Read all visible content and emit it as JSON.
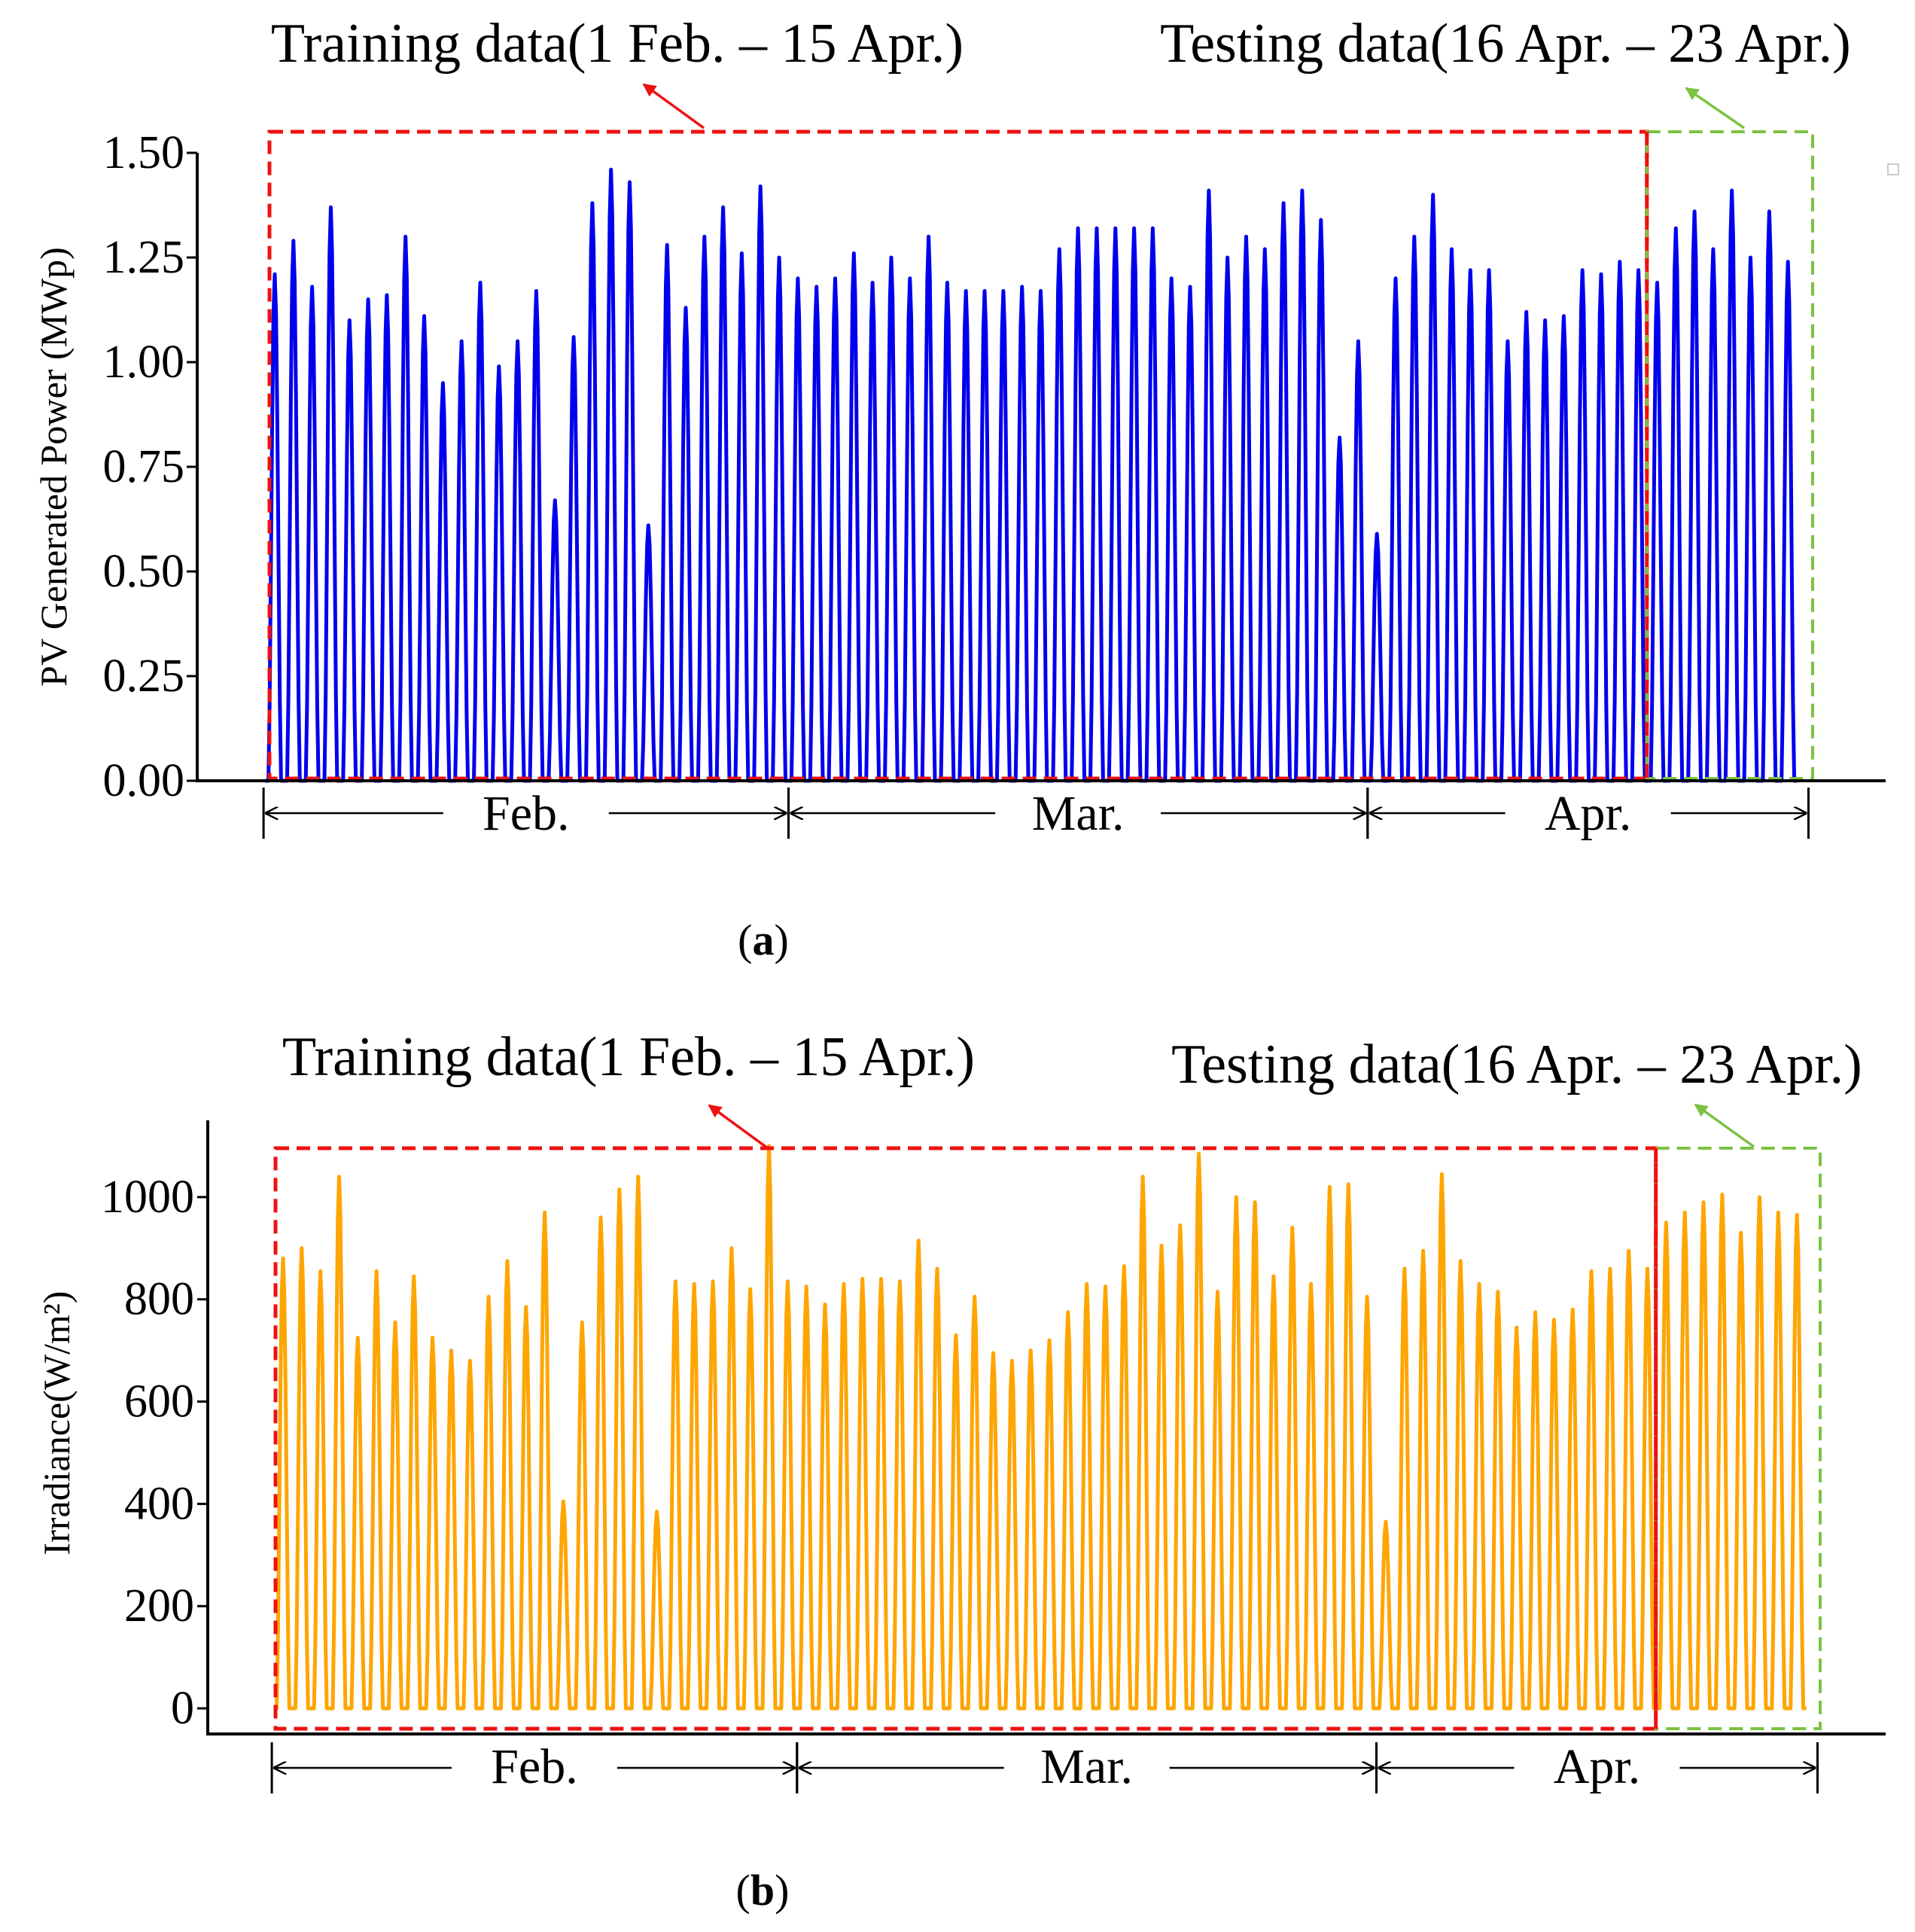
{
  "colors": {
    "power_line": "#0000ee",
    "irradiance_line": "#ffa500",
    "training_box": "#ee1111",
    "testing_box": "#7cc242"
  },
  "chart_data": [
    {
      "type": "line",
      "panel": "a",
      "panel_label": "a",
      "title": "",
      "xlabel": "",
      "ylabel": "PV Generated Power (MWp)",
      "ylim": [
        0,
        1.5
      ],
      "yticks": [
        "0.00",
        "0.25",
        "0.50",
        "0.75",
        "1.00",
        "1.25",
        "1.50"
      ],
      "ytick_values": [
        0,
        0.25,
        0.5,
        0.75,
        1.0,
        1.25,
        1.5
      ],
      "x_unit": "day (1 = 1 Feb.)",
      "xlim": [
        1,
        83
      ],
      "months": [
        {
          "label": "Feb.",
          "start_day": 1,
          "end_day": 29
        },
        {
          "label": "Mar.",
          "start_day": 29,
          "end_day": 60
        },
        {
          "label": "Apr.",
          "start_day": 60,
          "end_day": 83
        }
      ],
      "regions": [
        {
          "label": "Training data(1 Feb. – 15 Apr.)",
          "start_day": 1,
          "end_day": 75
        },
        {
          "label": "Testing data(16 Apr. – 23 Apr.)",
          "start_day": 75,
          "end_day": 83
        }
      ],
      "series": [
        {
          "name": "PV Generated Power",
          "daily_peaks": [
            1.21,
            1.29,
            1.18,
            1.37,
            1.1,
            1.15,
            1.16,
            1.3,
            1.11,
            0.95,
            1.05,
            1.19,
            0.99,
            1.05,
            1.17,
            0.67,
            1.06,
            1.38,
            1.46,
            1.43,
            0.61,
            1.28,
            1.13,
            1.3,
            1.37,
            1.26,
            1.42,
            1.25,
            1.2,
            1.18,
            1.2,
            1.26,
            1.19,
            1.25,
            1.2,
            1.3,
            1.19,
            1.17,
            1.17,
            1.17,
            1.18,
            1.17,
            1.27,
            1.32,
            1.32,
            1.32,
            1.32,
            1.32,
            1.2,
            1.18,
            1.41,
            1.25,
            1.3,
            1.27,
            1.38,
            1.41,
            1.34,
            0.82,
            1.05,
            0.59,
            1.2,
            1.3,
            1.4,
            1.27,
            1.22,
            1.22,
            1.05,
            1.12,
            1.1,
            1.11,
            1.22,
            1.21,
            1.24,
            1.22,
            1.19,
            1.32,
            1.36,
            1.27,
            1.41,
            1.25,
            1.36,
            1.24
          ]
        }
      ]
    },
    {
      "type": "line",
      "panel": "b",
      "panel_label": "b",
      "title": "",
      "xlabel": "",
      "ylabel": "Irradiance(W/m²)",
      "ylim": [
        -50,
        1150
      ],
      "yticks": [
        "0",
        "200",
        "400",
        "600",
        "800",
        "1000"
      ],
      "ytick_values": [
        0,
        200,
        400,
        600,
        800,
        1000
      ],
      "x_unit": "day (1 = 1 Feb.)",
      "xlim": [
        1,
        83
      ],
      "months": [
        {
          "label": "Feb.",
          "start_day": 1,
          "end_day": 29
        },
        {
          "label": "Mar.",
          "start_day": 29,
          "end_day": 60
        },
        {
          "label": "Apr.",
          "start_day": 60,
          "end_day": 83
        }
      ],
      "regions": [
        {
          "label": "Training data(1 Feb. – 15 Apr.)",
          "start_day": 1,
          "end_day": 75
        },
        {
          "label": "Testing data(16 Apr. – 23 Apr.)",
          "start_day": 75,
          "end_day": 83
        }
      ],
      "series": [
        {
          "name": "Irradiance",
          "daily_peaks": [
            880,
            900,
            855,
            1040,
            725,
            855,
            755,
            845,
            725,
            700,
            680,
            805,
            875,
            785,
            970,
            405,
            755,
            960,
            1015,
            1040,
            385,
            835,
            830,
            835,
            900,
            820,
            1100,
            835,
            825,
            790,
            830,
            840,
            840,
            835,
            915,
            860,
            730,
            805,
            695,
            680,
            700,
            720,
            775,
            830,
            825,
            865,
            1040,
            905,
            945,
            1085,
            815,
            1000,
            990,
            845,
            940,
            830,
            1020,
            1025,
            805,
            365,
            860,
            895,
            1045,
            875,
            830,
            815,
            745,
            775,
            760,
            780,
            855,
            860,
            895,
            860,
            950,
            970,
            990,
            1005,
            930,
            1000,
            970,
            965
          ]
        }
      ]
    }
  ]
}
